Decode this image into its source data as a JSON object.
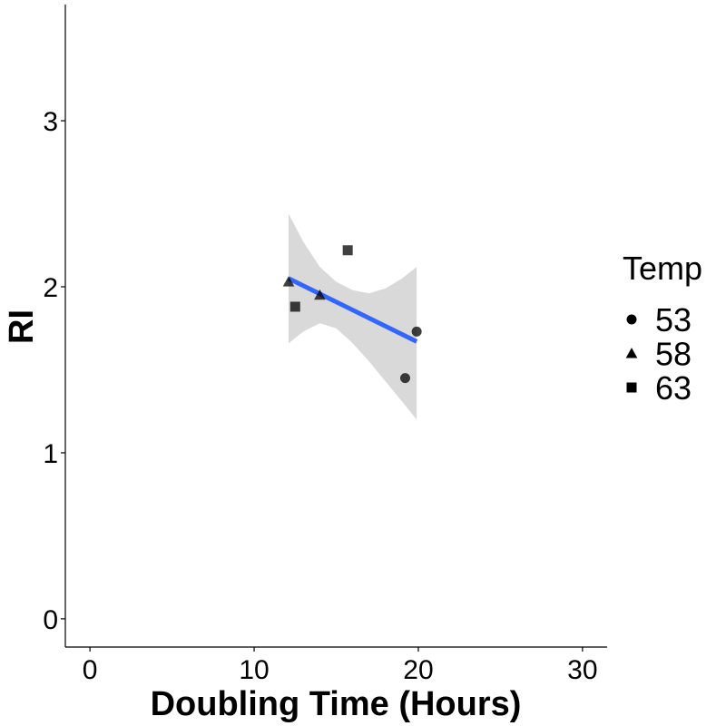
{
  "chart_data": {
    "type": "scatter",
    "title": "",
    "xlabel": "Doubling Time (Hours)",
    "ylabel": "RI",
    "xlim": [
      -1.5,
      31.5
    ],
    "ylim": [
      -0.17,
      3.7
    ],
    "x_ticks": [
      0,
      10,
      20,
      30
    ],
    "x_tick_labels": [
      "0",
      "10",
      "20",
      "30"
    ],
    "y_ticks": [
      0,
      1,
      2,
      3
    ],
    "y_tick_labels": [
      "0",
      "1",
      "2",
      "3"
    ],
    "grid": false,
    "legend": {
      "title": "Temp",
      "placement": "right",
      "entries": [
        {
          "label": "53",
          "shape": "circle"
        },
        {
          "label": "58",
          "shape": "triangle"
        },
        {
          "label": "63",
          "shape": "square"
        }
      ]
    },
    "series": [
      {
        "name": "53",
        "shape": "circle",
        "points": [
          {
            "x": 19.9,
            "y": 1.73
          },
          {
            "x": 19.2,
            "y": 1.45
          }
        ]
      },
      {
        "name": "58",
        "shape": "triangle",
        "points": [
          {
            "x": 12.1,
            "y": 2.03
          },
          {
            "x": 14.0,
            "y": 1.95
          }
        ]
      },
      {
        "name": "63",
        "shape": "square",
        "points": [
          {
            "x": 12.5,
            "y": 1.88
          },
          {
            "x": 15.7,
            "y": 2.22
          }
        ]
      }
    ],
    "fit": {
      "method": "lm",
      "color": "#3366ff",
      "band_color": "#d9d9d9",
      "x_range": [
        12.1,
        19.9
      ],
      "line": [
        {
          "x": 12.1,
          "y": 2.05
        },
        {
          "x": 19.9,
          "y": 1.67
        }
      ],
      "band": [
        {
          "x": 12.1,
          "lo": 1.66,
          "hi": 2.44
        },
        {
          "x": 13.0,
          "lo": 1.73,
          "hi": 2.27
        },
        {
          "x": 14.0,
          "lo": 1.78,
          "hi": 2.12
        },
        {
          "x": 15.0,
          "lo": 1.75,
          "hi": 2.03
        },
        {
          "x": 16.0,
          "lo": 1.66,
          "hi": 1.98
        },
        {
          "x": 17.0,
          "lo": 1.55,
          "hi": 1.96
        },
        {
          "x": 18.0,
          "lo": 1.43,
          "hi": 1.99
        },
        {
          "x": 19.0,
          "lo": 1.31,
          "hi": 2.05
        },
        {
          "x": 19.9,
          "lo": 1.2,
          "hi": 2.12
        }
      ]
    },
    "point_color": "#000000",
    "point_alpha": 0.75
  }
}
